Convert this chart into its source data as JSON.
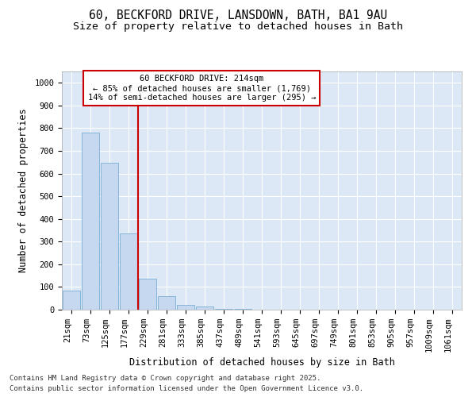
{
  "title1": "60, BECKFORD DRIVE, LANSDOWN, BATH, BA1 9AU",
  "title2": "Size of property relative to detached houses in Bath",
  "xlabel": "Distribution of detached houses by size in Bath",
  "ylabel": "Number of detached properties",
  "categories": [
    "21sqm",
    "73sqm",
    "125sqm",
    "177sqm",
    "229sqm",
    "281sqm",
    "333sqm",
    "385sqm",
    "437sqm",
    "489sqm",
    "541sqm",
    "593sqm",
    "645sqm",
    "697sqm",
    "749sqm",
    "801sqm",
    "853sqm",
    "905sqm",
    "957sqm",
    "1009sqm",
    "1061sqm"
  ],
  "values": [
    85,
    780,
    648,
    335,
    135,
    58,
    22,
    15,
    5,
    2,
    1,
    0,
    0,
    0,
    0,
    0,
    0,
    0,
    0,
    0,
    0
  ],
  "bar_color": "#c5d8ef",
  "bar_edge_color": "#7bafd4",
  "plot_bg_color": "#dce8f5",
  "fig_bg_color": "#ffffff",
  "grid_color": "#ffffff",
  "vline_color": "#cc0000",
  "vline_x": 4,
  "annotation_text": "60 BECKFORD DRIVE: 214sqm\n← 85% of detached houses are smaller (1,769)\n14% of semi-detached houses are larger (295) →",
  "annotation_box_color": "#ffffff",
  "annotation_box_edge": "#cc0000",
  "ylim": [
    0,
    1050
  ],
  "yticks": [
    0,
    100,
    200,
    300,
    400,
    500,
    600,
    700,
    800,
    900,
    1000
  ],
  "footer1": "Contains HM Land Registry data © Crown copyright and database right 2025.",
  "footer2": "Contains public sector information licensed under the Open Government Licence v3.0.",
  "title_fontsize": 10.5,
  "subtitle_fontsize": 9.5,
  "label_fontsize": 8.5,
  "tick_fontsize": 7.5,
  "footer_fontsize": 6.5
}
